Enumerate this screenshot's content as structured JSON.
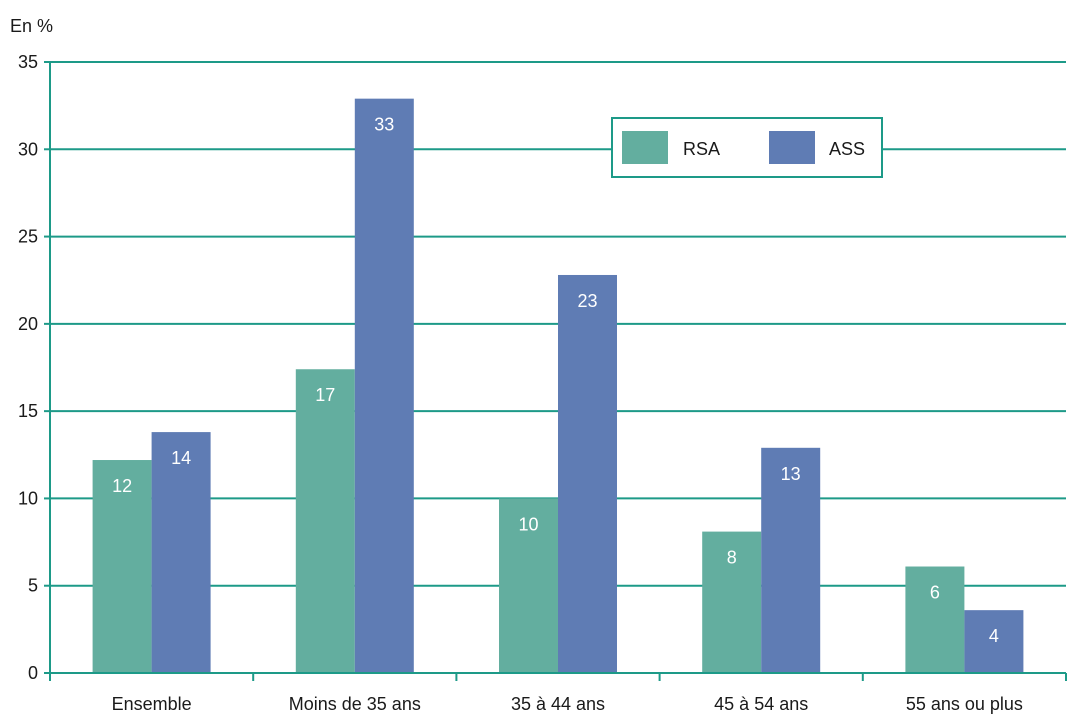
{
  "chart_data": {
    "type": "bar",
    "unit_label": "En %",
    "categories": [
      "Ensemble",
      "Moins de 35 ans",
      "35 à 44 ans",
      "45 à 54 ans",
      "55 ans ou plus"
    ],
    "series": [
      {
        "name": "RSA",
        "color": "#63ae9f",
        "values": [
          12.2,
          17.4,
          10.0,
          8.1,
          6.1
        ],
        "labels": [
          "12",
          "17",
          "10",
          "8",
          "6"
        ]
      },
      {
        "name": "ASS",
        "color": "#5f7cb4",
        "values": [
          13.8,
          32.9,
          22.8,
          12.9,
          3.6
        ],
        "labels": [
          "14",
          "33",
          "23",
          "13",
          "4"
        ]
      }
    ],
    "ylim": [
      0,
      35
    ],
    "yticks": [
      0,
      5,
      10,
      15,
      20,
      25,
      30,
      35
    ],
    "grid": true,
    "grid_color": "#1d9a88",
    "legend_position": "top-right",
    "xlabel": "",
    "ylabel": ""
  }
}
